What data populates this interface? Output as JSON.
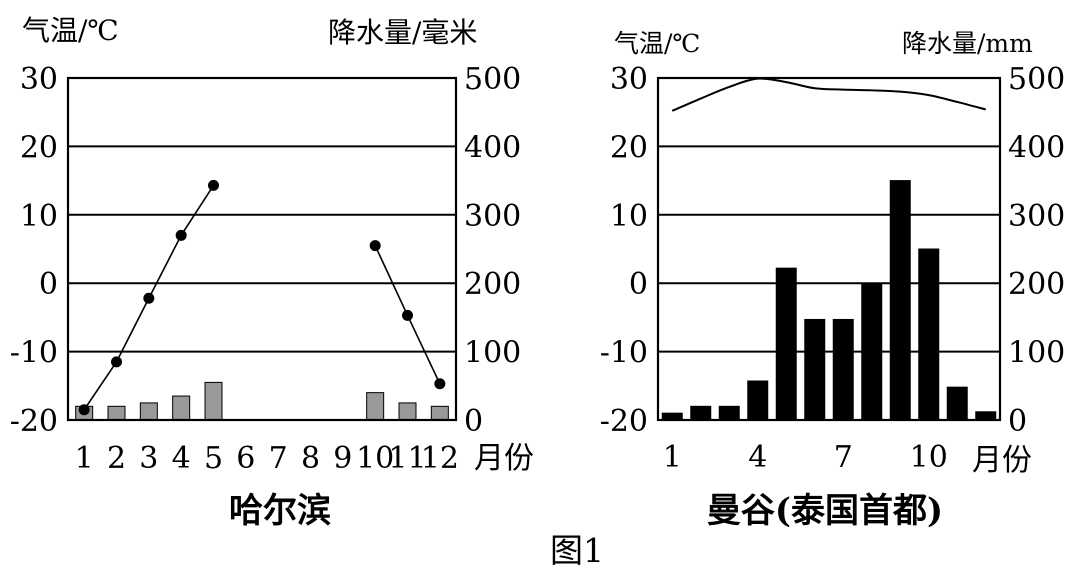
{
  "figure_caption": "图1",
  "chart_data": [
    {
      "type": "bar+line",
      "title": "哈尔滨",
      "left_axis_label": "气温/℃",
      "right_axis_label": "降水量/毫米",
      "x_unit_label": "月份",
      "categories": [
        "1",
        "2",
        "3",
        "4",
        "5",
        "6",
        "7",
        "8",
        "9",
        "10",
        "11",
        "12"
      ],
      "left_ticks": [
        "30",
        "20",
        "10",
        "0",
        "-10",
        "-20"
      ],
      "right_ticks": [
        "500",
        "400",
        "300",
        "200",
        "100",
        "0"
      ],
      "left_ylim": [
        -20,
        30
      ],
      "right_ylim": [
        0,
        500
      ],
      "grid": true,
      "temperature": [
        -18.5,
        -11.5,
        -2.2,
        7.0,
        14.3,
        null,
        null,
        null,
        null,
        5.5,
        -4.7,
        -14.7
      ],
      "precipitation": [
        20,
        20,
        25,
        35,
        55,
        null,
        null,
        null,
        null,
        40,
        25,
        20
      ],
      "bar_color": "#999999"
    },
    {
      "type": "bar+line",
      "title": "曼谷(泰国首都)",
      "left_axis_label": "气温/℃",
      "right_axis_label": "降水量/mm",
      "x_unit_label": "月份",
      "categories": [
        "1",
        "2",
        "3",
        "4",
        "5",
        "6",
        "7",
        "8",
        "9",
        "10",
        "11",
        "12"
      ],
      "x_tick_labels": [
        "1",
        "4",
        "7",
        "10"
      ],
      "left_ticks": [
        "30",
        "20",
        "10",
        "0",
        "-10",
        "-20"
      ],
      "right_ticks": [
        "500",
        "400",
        "300",
        "200",
        "100",
        "0"
      ],
      "left_ylim": [
        -20,
        30
      ],
      "right_ylim": [
        0,
        500
      ],
      "grid": true,
      "temperature": [
        25.2,
        27.0,
        28.7,
        29.9,
        29.4,
        28.5,
        28.3,
        28.2,
        28.0,
        27.5,
        26.5,
        25.4
      ],
      "precipitation": [
        10,
        20,
        20,
        57,
        222,
        147,
        147,
        200,
        350,
        250,
        48,
        12
      ],
      "bar_color": "#000000"
    }
  ]
}
